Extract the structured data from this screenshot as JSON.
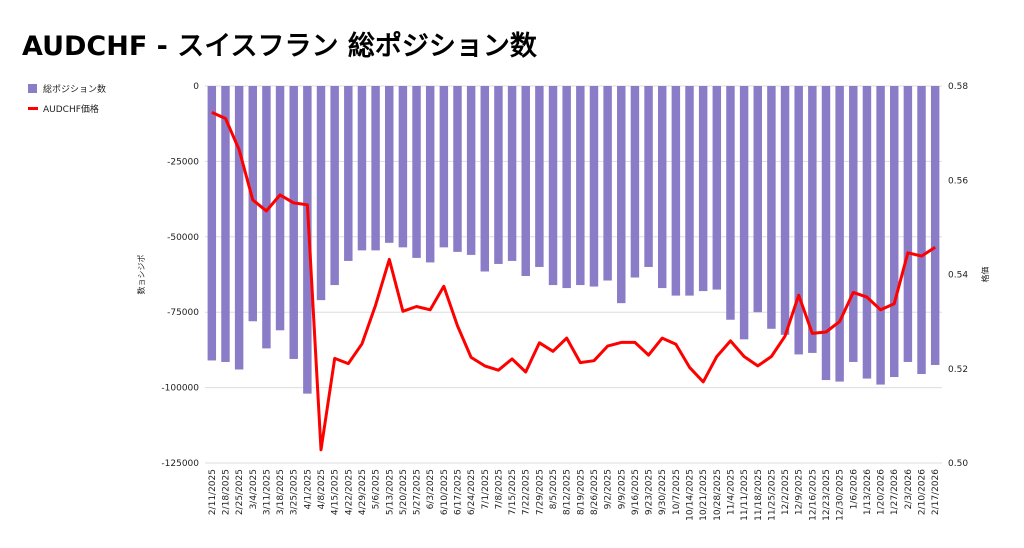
{
  "title": "AUDCHF - スイスフラン 総ポジション数",
  "legend": {
    "bar_label": "総ポジション数",
    "line_label": "AUDCHF価格"
  },
  "colors": {
    "bar": "#8b7cc8",
    "line": "#ff0000",
    "grid": "#dddddd"
  },
  "chart_data": {
    "type": "bar+line",
    "title": "AUDCHF - スイスフラン 総ポジション数",
    "categories": [
      "2/11/2025",
      "2/18/2025",
      "2/25/2025",
      "3/4/2025",
      "3/11/2025",
      "3/18/2025",
      "3/25/2025",
      "4/1/2025",
      "4/8/2025",
      "4/15/2025",
      "4/22/2025",
      "4/29/2025",
      "5/6/2025",
      "5/13/2025",
      "5/20/2025",
      "5/27/2025",
      "6/3/2025",
      "6/10/2025",
      "6/17/2025",
      "6/24/2025",
      "7/1/2025",
      "7/8/2025",
      "7/15/2025",
      "7/22/2025",
      "7/29/2025",
      "8/5/2025",
      "8/12/2025",
      "8/19/2025",
      "8/26/2025",
      "9/2/2025",
      "9/9/2025",
      "9/16/2025",
      "9/23/2025",
      "9/30/2025",
      "10/7/2025",
      "10/14/2025",
      "10/21/2025",
      "10/28/2025",
      "11/4/2025",
      "11/11/2025",
      "11/18/2025",
      "11/25/2025",
      "12/2/2025",
      "12/9/2025",
      "12/16/2025",
      "12/23/2025",
      "12/30/2025",
      "1/6/2026",
      "1/13/2026",
      "1/20/2026",
      "1/27/2026",
      "2/3/2026",
      "2/10/2026",
      "2/17/2026"
    ],
    "series": [
      {
        "name": "総ポジション数",
        "type": "bar",
        "axis": "left",
        "values": [
          -91000,
          -91500,
          -94000,
          -78000,
          -87000,
          -81000,
          -90500,
          -102000,
          -71000,
          -66000,
          -58000,
          -54500,
          -54500,
          -52000,
          -53500,
          -57000,
          -58500,
          -53500,
          -55000,
          -56000,
          -61500,
          -59000,
          -58000,
          -63000,
          -60000,
          -66000,
          -67000,
          -66000,
          -66500,
          -64500,
          -72000,
          -63500,
          -60000,
          -67000,
          -69500,
          -69500,
          -68000,
          -67500,
          -77500,
          -84000,
          -75000,
          -80500,
          -82500,
          -89000,
          -88500,
          -97500,
          -98000,
          -91500,
          -97000,
          -99000,
          -96500,
          -91500,
          -95500,
          -92500
        ]
      },
      {
        "name": "AUDCHF価格",
        "type": "line",
        "axis": "right",
        "values": [
          0.5744,
          0.5731,
          0.5665,
          0.5558,
          0.5535,
          0.5569,
          0.5552,
          0.5548,
          0.5028,
          0.5222,
          0.5211,
          0.5253,
          0.5335,
          0.5432,
          0.5322,
          0.5332,
          0.5325,
          0.5375,
          0.5291,
          0.5224,
          0.5206,
          0.5197,
          0.5221,
          0.5193,
          0.5255,
          0.5237,
          0.5265,
          0.5213,
          0.5217,
          0.5248,
          0.5256,
          0.5256,
          0.5229,
          0.5265,
          0.5252,
          0.5203,
          0.5172,
          0.5226,
          0.5259,
          0.5226,
          0.5206,
          0.5226,
          0.5269,
          0.5356,
          0.5275,
          0.5278,
          0.53,
          0.5362,
          0.5352,
          0.5325,
          0.5338,
          0.5446,
          0.5439,
          0.5458
        ]
      }
    ],
    "y_left": {
      "label": "数ョシジポ",
      "ylim": [
        -125000,
        0
      ],
      "ticks": [
        0,
        -25000,
        -50000,
        -75000,
        -100000,
        -125000
      ]
    },
    "y_right": {
      "label": "格価",
      "ylim": [
        0.5,
        0.58
      ],
      "ticks": [
        0.58,
        0.56,
        0.54,
        0.52,
        0.5
      ]
    },
    "grid": true,
    "legend_position": "top-left"
  }
}
